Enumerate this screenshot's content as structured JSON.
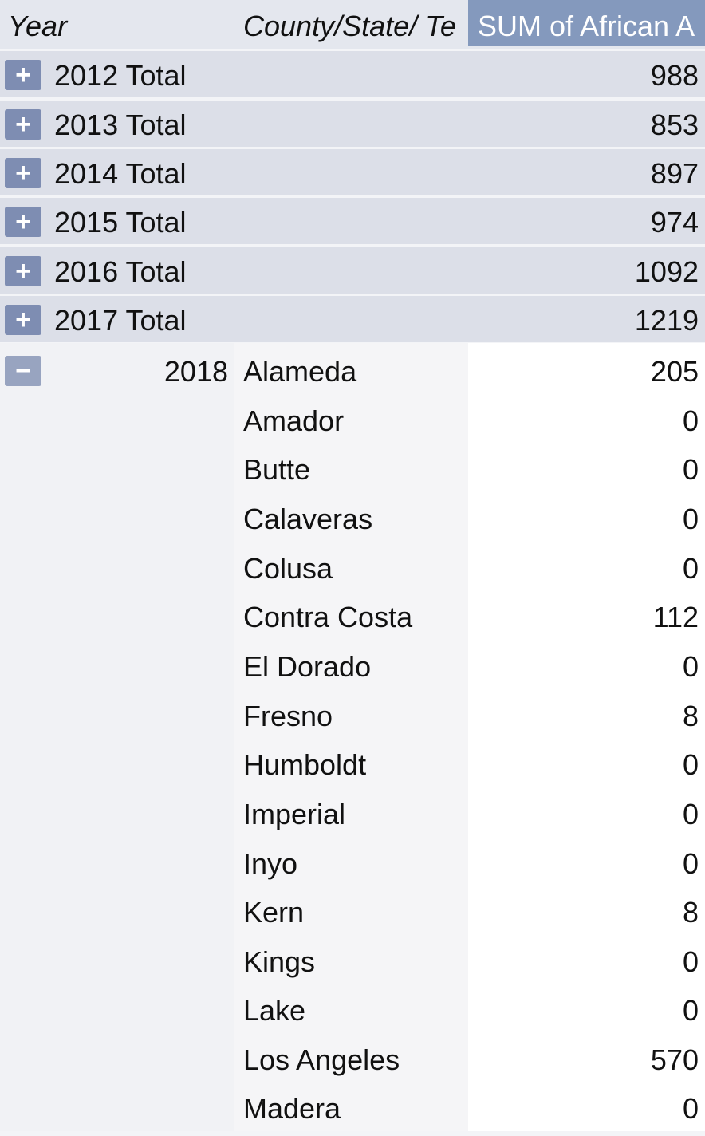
{
  "header": {
    "year": "Year",
    "county": "County/State/ Te",
    "value": "SUM of African A"
  },
  "totals": [
    {
      "label": "2012 Total",
      "value": "988"
    },
    {
      "label": "2013 Total",
      "value": "853"
    },
    {
      "label": "2014 Total",
      "value": "897"
    },
    {
      "label": "2015 Total",
      "value": "974"
    },
    {
      "label": "2016 Total",
      "value": "1092"
    },
    {
      "label": "2017 Total",
      "value": "1219"
    }
  ],
  "expand_symbol": "+",
  "collapse_symbol": "−",
  "expanded": {
    "year": "2018",
    "rows": [
      {
        "county": "Alameda",
        "value": "205"
      },
      {
        "county": "Amador",
        "value": "0"
      },
      {
        "county": "Butte",
        "value": "0"
      },
      {
        "county": "Calaveras",
        "value": "0"
      },
      {
        "county": "Colusa",
        "value": "0"
      },
      {
        "county": "Contra Costa",
        "value": "112"
      },
      {
        "county": "El Dorado",
        "value": "0"
      },
      {
        "county": "Fresno",
        "value": "8"
      },
      {
        "county": "Humboldt",
        "value": "0"
      },
      {
        "county": "Imperial",
        "value": "0"
      },
      {
        "county": "Inyo",
        "value": "0"
      },
      {
        "county": "Kern",
        "value": "8"
      },
      {
        "county": "Kings",
        "value": "0"
      },
      {
        "county": "Lake",
        "value": "0"
      },
      {
        "county": "Los Angeles",
        "value": "570"
      },
      {
        "county": "Madera",
        "value": "0"
      }
    ]
  }
}
